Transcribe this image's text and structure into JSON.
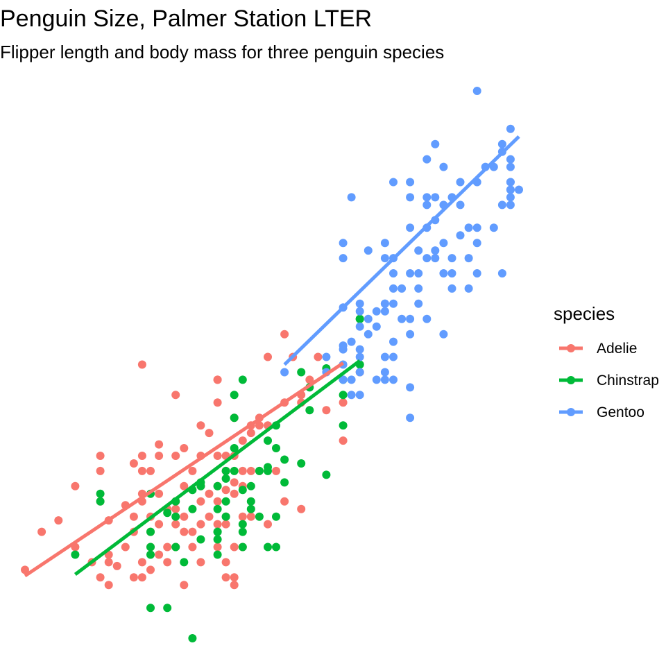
{
  "chart_data": {
    "type": "scatter",
    "title": "Penguin Size, Palmer Station LTER",
    "subtitle": "Flipper length and body mass for three penguin species",
    "xlabel": "",
    "ylabel": "",
    "xlim": [
      172,
      231
    ],
    "ylim": [
      2700,
      6300
    ],
    "grid": false,
    "legend": {
      "title": "species",
      "position": "right"
    },
    "series": [
      {
        "name": "Adelie",
        "color": "#F8766D",
        "trend": [
          [
            172,
            3110
          ],
          [
            210,
            4510
          ]
        ],
        "points": [
          [
            172,
            3150
          ],
          [
            174,
            3400
          ],
          [
            176,
            3475
          ],
          [
            178,
            3700
          ],
          [
            178,
            3300
          ],
          [
            180,
            3200
          ],
          [
            181,
            3600
          ],
          [
            181,
            3800
          ],
          [
            181,
            3900
          ],
          [
            181,
            3100
          ],
          [
            182,
            3050
          ],
          [
            182,
            3200
          ],
          [
            182,
            3250
          ],
          [
            182,
            3475
          ],
          [
            183,
            3175
          ],
          [
            184,
            3300
          ],
          [
            184,
            3575
          ],
          [
            185,
            3850
          ],
          [
            185,
            3500
          ],
          [
            185,
            3400
          ],
          [
            185,
            3100
          ],
          [
            186,
            3200
          ],
          [
            186,
            3600
          ],
          [
            186,
            3650
          ],
          [
            186,
            3100
          ],
          [
            186,
            3800
          ],
          [
            186,
            3900
          ],
          [
            186,
            4500
          ],
          [
            187,
            3800
          ],
          [
            187,
            3500
          ],
          [
            187,
            3400
          ],
          [
            187,
            3300
          ],
          [
            187,
            3150
          ],
          [
            188,
            3250
          ],
          [
            188,
            3650
          ],
          [
            188,
            3450
          ],
          [
            188,
            3975
          ],
          [
            188,
            3900
          ],
          [
            189,
            3550
          ],
          [
            189,
            3300
          ],
          [
            189,
            3200
          ],
          [
            190,
            3300
          ],
          [
            190,
            3450
          ],
          [
            190,
            3550
          ],
          [
            190,
            3900
          ],
          [
            190,
            3600
          ],
          [
            190,
            4300
          ],
          [
            191,
            3050
          ],
          [
            191,
            3400
          ],
          [
            191,
            3700
          ],
          [
            191,
            3950
          ],
          [
            191,
            3500
          ],
          [
            192,
            3800
          ],
          [
            192,
            3300
          ],
          [
            192,
            3400
          ],
          [
            193,
            3450
          ],
          [
            193,
            3700
          ],
          [
            193,
            3900
          ],
          [
            193,
            4100
          ],
          [
            193,
            3200
          ],
          [
            193,
            3600
          ],
          [
            194,
            4050
          ],
          [
            194,
            3650
          ],
          [
            194,
            3500
          ],
          [
            195,
            3600
          ],
          [
            195,
            3300
          ],
          [
            195,
            3450
          ],
          [
            195,
            3700
          ],
          [
            195,
            3900
          ],
          [
            195,
            4250
          ],
          [
            195,
            4400
          ],
          [
            195,
            4400
          ],
          [
            196,
            3675
          ],
          [
            196,
            3500
          ],
          [
            196,
            3800
          ],
          [
            196,
            3900
          ],
          [
            196,
            3100
          ],
          [
            196,
            3450
          ],
          [
            196,
            3200
          ],
          [
            197,
            4150
          ],
          [
            197,
            3900
          ],
          [
            197,
            3725
          ],
          [
            197,
            3300
          ],
          [
            197,
            3650
          ],
          [
            197,
            3050
          ],
          [
            197,
            3100
          ],
          [
            198,
            3800
          ],
          [
            198,
            3300
          ],
          [
            198,
            3500
          ],
          [
            198,
            3700
          ],
          [
            198,
            4000
          ],
          [
            199,
            3500
          ],
          [
            199,
            3800
          ],
          [
            199,
            4050
          ],
          [
            199,
            4100
          ],
          [
            200,
            3800
          ],
          [
            200,
            4100
          ],
          [
            200,
            4150
          ],
          [
            201,
            3450
          ],
          [
            201,
            4100
          ],
          [
            201,
            4550
          ],
          [
            202,
            3800
          ],
          [
            203,
            4250
          ],
          [
            203,
            3600
          ],
          [
            203,
            4700
          ],
          [
            204,
            4550
          ],
          [
            205,
            3550
          ],
          [
            205,
            4250
          ],
          [
            205,
            4300
          ],
          [
            206,
            4400
          ],
          [
            207,
            4550
          ],
          [
            208,
            4200
          ],
          [
            210,
            4250
          ],
          [
            210,
            4000
          ],
          [
            212,
            4450
          ]
        ]
      },
      {
        "name": "Chinstrap",
        "color": "#00BA38",
        "trend": [
          [
            178,
            3120
          ],
          [
            212,
            4525
          ]
        ],
        "points": [
          [
            178,
            3250
          ],
          [
            181,
            3600
          ],
          [
            181,
            3650
          ],
          [
            187,
            3650
          ],
          [
            187,
            3400
          ],
          [
            187,
            3300
          ],
          [
            187,
            3250
          ],
          [
            187,
            2900
          ],
          [
            189,
            2900
          ],
          [
            189,
            3525
          ],
          [
            190,
            3500
          ],
          [
            190,
            3300
          ],
          [
            190,
            3600
          ],
          [
            191,
            3200
          ],
          [
            192,
            3675
          ],
          [
            192,
            2700
          ],
          [
            192,
            3550
          ],
          [
            193,
            3700
          ],
          [
            193,
            3725
          ],
          [
            193,
            3350
          ],
          [
            195,
            3400
          ],
          [
            195,
            3350
          ],
          [
            195,
            3250
          ],
          [
            195,
            3550
          ],
          [
            195,
            3400
          ],
          [
            195,
            3700
          ],
          [
            196,
            3800
          ],
          [
            196,
            3750
          ],
          [
            196,
            3500
          ],
          [
            196,
            3600
          ],
          [
            197,
            4300
          ],
          [
            197,
            3800
          ],
          [
            197,
            3950
          ],
          [
            197,
            4150
          ],
          [
            198,
            3675
          ],
          [
            198,
            3450
          ],
          [
            198,
            3400
          ],
          [
            198,
            4400
          ],
          [
            198,
            3300
          ],
          [
            199,
            3550
          ],
          [
            199,
            3700
          ],
          [
            199,
            3600
          ],
          [
            200,
            3800
          ],
          [
            200,
            3500
          ],
          [
            201,
            3800
          ],
          [
            201,
            3300
          ],
          [
            201,
            4000
          ],
          [
            201,
            3825
          ],
          [
            202,
            3950
          ],
          [
            202,
            3500
          ],
          [
            202,
            4100
          ],
          [
            202,
            3300
          ],
          [
            203,
            3875
          ],
          [
            203,
            3725
          ],
          [
            205,
            3850
          ],
          [
            205,
            4450
          ],
          [
            206,
            4200
          ],
          [
            206,
            4350
          ],
          [
            208,
            3775
          ],
          [
            208,
            4475
          ],
          [
            210,
            4100
          ],
          [
            210,
            4300
          ],
          [
            210,
            4400
          ],
          [
            212,
            4500
          ],
          [
            212,
            4800
          ],
          [
            212,
            4800
          ]
        ]
      },
      {
        "name": "Gentoo",
        "color": "#619CFF",
        "trend": [
          [
            203,
            4500
          ],
          [
            231,
            6000
          ]
        ],
        "points": [
          [
            203,
            4450
          ],
          [
            208,
            4450
          ],
          [
            208,
            4550
          ],
          [
            210,
            5200
          ],
          [
            210,
            4600
          ],
          [
            210,
            4875
          ],
          [
            210,
            5300
          ],
          [
            210,
            4500
          ],
          [
            210,
            4400
          ],
          [
            210,
            4625
          ],
          [
            211,
            5600
          ],
          [
            211,
            4650
          ],
          [
            211,
            4300
          ],
          [
            211,
            4400
          ],
          [
            212,
            4850
          ],
          [
            212,
            4750
          ],
          [
            212,
            4550
          ],
          [
            212,
            4450
          ],
          [
            212,
            4600
          ],
          [
            212,
            4900
          ],
          [
            212,
            4300
          ],
          [
            213,
            5250
          ],
          [
            213,
            4700
          ],
          [
            213,
            4800
          ],
          [
            214,
            4750
          ],
          [
            214,
            4850
          ],
          [
            214,
            4400
          ],
          [
            215,
            4550
          ],
          [
            215,
            4900
          ],
          [
            215,
            5200
          ],
          [
            215,
            4900
          ],
          [
            215,
            4850
          ],
          [
            215,
            4450
          ],
          [
            215,
            4400
          ],
          [
            215,
            5300
          ],
          [
            216,
            5200
          ],
          [
            216,
            4550
          ],
          [
            216,
            5000
          ],
          [
            216,
            5700
          ],
          [
            216,
            5100
          ],
          [
            216,
            4900
          ],
          [
            216,
            4650
          ],
          [
            216,
            4400
          ],
          [
            217,
            5000
          ],
          [
            217,
            4800
          ],
          [
            218,
            5700
          ],
          [
            218,
            4350
          ],
          [
            218,
            4150
          ],
          [
            218,
            5100
          ],
          [
            218,
            4700
          ],
          [
            218,
            5400
          ],
          [
            218,
            5600
          ],
          [
            218,
            4800
          ],
          [
            219,
            5250
          ],
          [
            219,
            5000
          ],
          [
            219,
            4900
          ],
          [
            219,
            5100
          ],
          [
            220,
            5550
          ],
          [
            220,
            5200
          ],
          [
            220,
            5600
          ],
          [
            220,
            5400
          ],
          [
            220,
            4800
          ],
          [
            220,
            5850
          ],
          [
            221,
            5450
          ],
          [
            221,
            5600
          ],
          [
            221,
            5250
          ],
          [
            221,
            5200
          ],
          [
            221,
            5950
          ],
          [
            222,
            5300
          ],
          [
            222,
            5550
          ],
          [
            222,
            4700
          ],
          [
            222,
            5100
          ],
          [
            222,
            5800
          ],
          [
            223,
            5200
          ],
          [
            223,
            5000
          ],
          [
            223,
            5600
          ],
          [
            223,
            5100
          ],
          [
            224,
            5550
          ],
          [
            224,
            5350
          ],
          [
            224,
            5700
          ],
          [
            225,
            5200
          ],
          [
            225,
            5000
          ],
          [
            225,
            5400
          ],
          [
            226,
            5300
          ],
          [
            226,
            5400
          ],
          [
            226,
            5700
          ],
          [
            226,
            6300
          ],
          [
            226,
            5100
          ],
          [
            227,
            5800
          ],
          [
            228,
            5400
          ],
          [
            228,
            5800
          ],
          [
            229,
            5900
          ],
          [
            229,
            5550
          ],
          [
            229,
            5950
          ],
          [
            229,
            5100
          ],
          [
            230,
            5850
          ],
          [
            230,
            5650
          ],
          [
            230,
            5700
          ],
          [
            230,
            5600
          ],
          [
            230,
            5800
          ],
          [
            230,
            5650
          ],
          [
            230,
            5700
          ],
          [
            230,
            5550
          ],
          [
            230,
            6050
          ],
          [
            231,
            5650
          ]
        ]
      }
    ]
  }
}
